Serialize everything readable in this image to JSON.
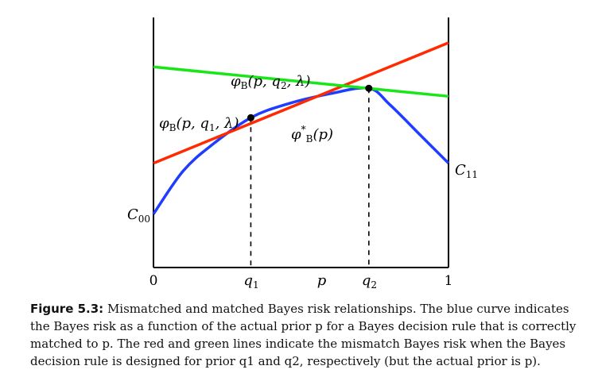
{
  "chart_data": {
    "type": "line",
    "x_ticks": [
      "0",
      "q1",
      "p",
      "q2",
      "1"
    ],
    "xlim": [
      0,
      1
    ],
    "ylim": [
      0,
      1
    ],
    "q1": 0.33,
    "q2": 0.73,
    "series": [
      {
        "name": "φB*(p)",
        "color": "#1f3dff",
        "x": [
          0,
          0.1,
          0.2,
          0.33,
          0.45,
          0.6,
          0.73,
          0.8,
          0.9,
          1.0
        ],
        "y": [
          0.2,
          0.36,
          0.46,
          0.56,
          0.61,
          0.65,
          0.67,
          0.61,
          0.5,
          0.39
        ]
      },
      {
        "name": "φB(p, q1, λ)",
        "color": "#ff2a00",
        "x": [
          0,
          1
        ],
        "y": [
          0.39,
          0.84
        ]
      },
      {
        "name": "φB(p, q2, λ)",
        "color": "#19e619",
        "x": [
          0,
          1
        ],
        "y": [
          0.75,
          0.64
        ]
      }
    ],
    "end_labels": {
      "c00": "C00",
      "c11": "C11"
    }
  },
  "caption": {
    "label": "Figure 5.3:",
    "text": " Mismatched and matched Bayes risk relationships. The blue curve indicates the Bayes risk as a function of the actual prior p for a Bayes decision rule that is correctly matched to p. The red and green lines indicate the mismatch Bayes risk when the Bayes decision rule is designed for prior q1 and q2, respectively (but the actual prior is p)."
  }
}
